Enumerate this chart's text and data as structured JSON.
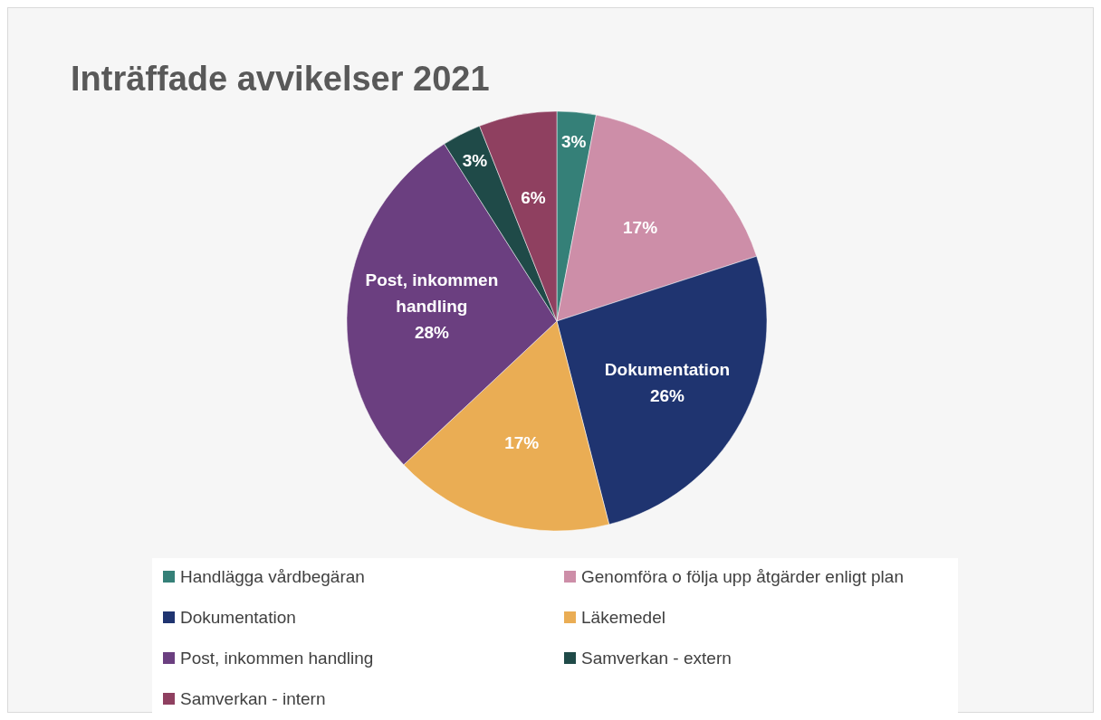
{
  "chart_data": {
    "type": "pie",
    "title": "Inträffade avvikelser 2021",
    "categories": [
      "Handlägga vårdbegäran",
      "Genomföra o följa upp åtgärder enligt plan",
      "Dokumentation",
      "Läkemedel",
      "Post, inkommen handling",
      "Samverkan - extern",
      "Samverkan - intern"
    ],
    "values": [
      3,
      17,
      26,
      17,
      28,
      3,
      6
    ],
    "colors": [
      "#358078",
      "#cd8ea8",
      "#1f3470",
      "#eaad54",
      "#6b3f80",
      "#1f4a48",
      "#8f4060"
    ],
    "value_labels": [
      "3%",
      "17%",
      "Dokumentation\n26%",
      "17%",
      "Post, inkommen\nhandling\n28%",
      "3%",
      "6%"
    ],
    "legend": "bottom"
  }
}
